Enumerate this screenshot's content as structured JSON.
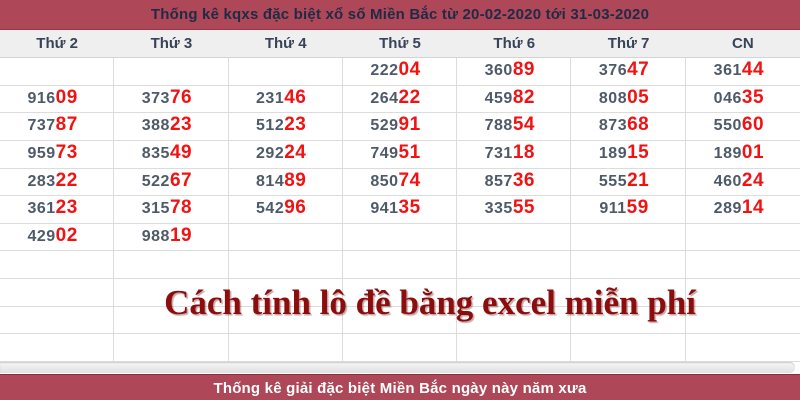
{
  "title_bar": {
    "text": "Thống kê kqxs đặc biệt xổ số Miền Bắc từ 20-02-2020 tới 31-03-2020"
  },
  "table": {
    "headers": [
      "Thứ 2",
      "Thứ 3",
      "Thứ 4",
      "Thứ 5",
      "Thứ 6",
      "Thứ 7",
      "CN"
    ],
    "rows": [
      [
        "",
        "",
        "",
        "22204",
        "36089",
        "37647",
        "36144"
      ],
      [
        "91609",
        "37376",
        "23146",
        "26422",
        "45982",
        "80805",
        "04635"
      ],
      [
        "73787",
        "38823",
        "51223",
        "52991",
        "78854",
        "87368",
        "55060"
      ],
      [
        "95973",
        "83549",
        "29224",
        "74951",
        "73118",
        "18915",
        "18901"
      ],
      [
        "28322",
        "52267",
        "81489",
        "85074",
        "85736",
        "55521",
        "46024"
      ],
      [
        "36123",
        "31578",
        "54296",
        "94135",
        "33555",
        "91159",
        "28914"
      ],
      [
        "42902",
        "98819",
        "",
        "",
        "",
        "",
        ""
      ],
      [
        "",
        "",
        "",
        "",
        "",
        "",
        ""
      ],
      [
        "",
        "",
        "",
        "",
        "",
        "",
        ""
      ],
      [
        "",
        "",
        "",
        "",
        "",
        "",
        ""
      ],
      [
        "",
        "",
        "",
        "",
        "",
        "",
        ""
      ]
    ],
    "number_format": {
      "dark_leading_digits": 3,
      "red_trailing_digits": 2
    }
  },
  "overlay_text": "Cách tính lô đề bằng excel miễn phí",
  "footer_bar": {
    "text": "Thống kê giải đặc biệt Miền Bắc ngày này năm xưa"
  },
  "colors": {
    "bar_background": "#ae4859",
    "bar_title_text": "#1f2a45",
    "header_row_bg": "#efefef",
    "header_text": "#384358",
    "digit_dark": "#4f5a68",
    "digit_red": "#f21212",
    "grid_border": "#dcdcdc",
    "overlay_maroon": "#8b0d0d",
    "footer_text": "#ffffff"
  }
}
